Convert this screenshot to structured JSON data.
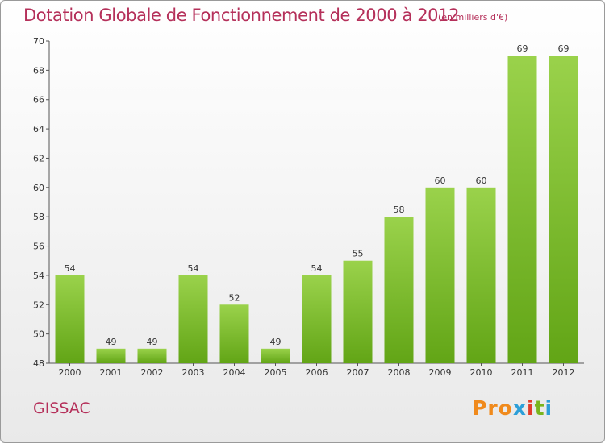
{
  "header": {
    "title": "Dotation Globale de Fonctionnement de 2000 à 2012",
    "subtitle": "(en milliers d'€)"
  },
  "footer": {
    "commune": "GISSAC",
    "logo_text": "Proxiti",
    "logo_colors": [
      "#f08a1c",
      "#f08a1c",
      "#f08a1c",
      "#2d9fd8",
      "#e23c2a",
      "#7ab51d",
      "#2d9fd8"
    ]
  },
  "colors": {
    "bar_light": "#9ad24b",
    "bar_dark": "#62a516",
    "title": "#b5305a"
  },
  "chart_data": {
    "type": "bar",
    "categories": [
      "2000",
      "2001",
      "2002",
      "2003",
      "2004",
      "2005",
      "2006",
      "2007",
      "2008",
      "2009",
      "2010",
      "2011",
      "2012"
    ],
    "values": [
      54,
      49,
      49,
      54,
      52,
      49,
      54,
      55,
      58,
      60,
      60,
      69,
      69
    ],
    "ylim": [
      48,
      70
    ],
    "yticks": [
      48,
      50,
      52,
      54,
      56,
      58,
      60,
      62,
      64,
      66,
      68,
      70
    ],
    "grid": false,
    "data_labels": true
  }
}
